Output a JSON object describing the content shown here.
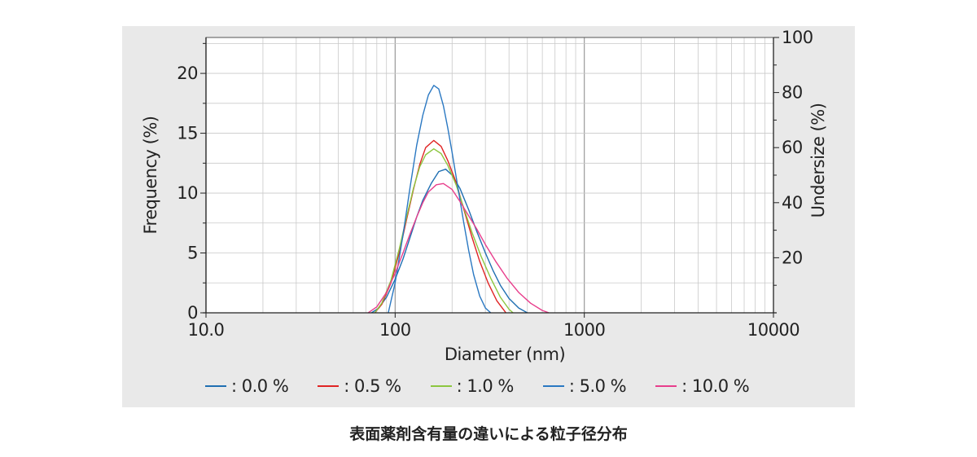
{
  "chart_data": {
    "type": "line",
    "x_scale": "log",
    "xlim": [
      10,
      10000
    ],
    "ylim": [
      0,
      23
    ],
    "y2lim": [
      0,
      100
    ],
    "grid": true,
    "xlabel": "Diameter (nm)",
    "ylabel": "Frequency (%)",
    "y2label": "Undersize (%)",
    "x_ticks": [
      "10.0",
      "100",
      "1000",
      "10000"
    ],
    "y_ticks": [
      "0",
      "5",
      "10",
      "15",
      "20"
    ],
    "y2_ticks": [
      "20",
      "40",
      "60",
      "80",
      "100"
    ],
    "legend_position": "bottom",
    "series": [
      {
        "name": ": 0.0 %",
        "color": "#1f6fb2",
        "x": [
          75,
          82,
          90,
          100,
          110,
          120,
          130,
          140,
          155,
          170,
          185,
          200,
          220,
          245,
          270,
          300,
          330,
          360,
          400,
          450,
          500
        ],
        "y": [
          0,
          0.4,
          1.3,
          2.8,
          4.5,
          6.3,
          8.0,
          9.4,
          10.8,
          11.8,
          12.0,
          11.5,
          10.4,
          8.6,
          6.8,
          5.0,
          3.5,
          2.3,
          1.2,
          0.4,
          0
        ]
      },
      {
        "name": ": 0.5 %",
        "color": "#e02424",
        "x": [
          78,
          85,
          95,
          105,
          115,
          125,
          135,
          145,
          160,
          175,
          190,
          210,
          230,
          255,
          280,
          310,
          345,
          385
        ],
        "y": [
          0,
          0.7,
          2.5,
          5.0,
          7.8,
          10.3,
          12.4,
          13.8,
          14.4,
          13.9,
          12.7,
          10.9,
          8.7,
          6.3,
          4.3,
          2.5,
          1.0,
          0
        ]
      },
      {
        "name": ": 1.0 %",
        "color": "#8cc63f",
        "x": [
          78,
          85,
          95,
          105,
          115,
          125,
          135,
          145,
          160,
          175,
          190,
          210,
          230,
          255,
          285,
          320,
          360,
          400,
          420
        ],
        "y": [
          0,
          0.8,
          2.7,
          5.3,
          8.0,
          10.4,
          12.2,
          13.2,
          13.7,
          13.3,
          12.3,
          10.7,
          8.8,
          6.7,
          4.7,
          2.9,
          1.3,
          0.3,
          0
        ]
      },
      {
        "name": ": 5.0 %",
        "color": "#2a78c2",
        "x": [
          92,
          100,
          110,
          120,
          130,
          140,
          150,
          160,
          170,
          180,
          190,
          200,
          215,
          230,
          245,
          260,
          280,
          300,
          320
        ],
        "y": [
          0,
          2.5,
          6.5,
          10.5,
          14.0,
          16.5,
          18.2,
          19.0,
          18.7,
          17.3,
          15.4,
          13.4,
          10.4,
          7.6,
          5.2,
          3.2,
          1.4,
          0.4,
          0
        ]
      },
      {
        "name": ": 10.0 %",
        "color": "#e83e8c",
        "x": [
          72,
          80,
          90,
          100,
          110,
          120,
          130,
          140,
          150,
          165,
          180,
          200,
          220,
          245,
          270,
          300,
          340,
          390,
          450,
          520,
          600,
          650
        ],
        "y": [
          0,
          0.5,
          1.7,
          3.3,
          5.0,
          6.6,
          8.0,
          9.2,
          10.1,
          10.7,
          10.8,
          10.3,
          9.3,
          8.1,
          7.0,
          5.7,
          4.3,
          2.9,
          1.7,
          0.8,
          0.2,
          0
        ]
      }
    ]
  },
  "caption": "表面薬剤含有量の違いによる粒子径分布"
}
